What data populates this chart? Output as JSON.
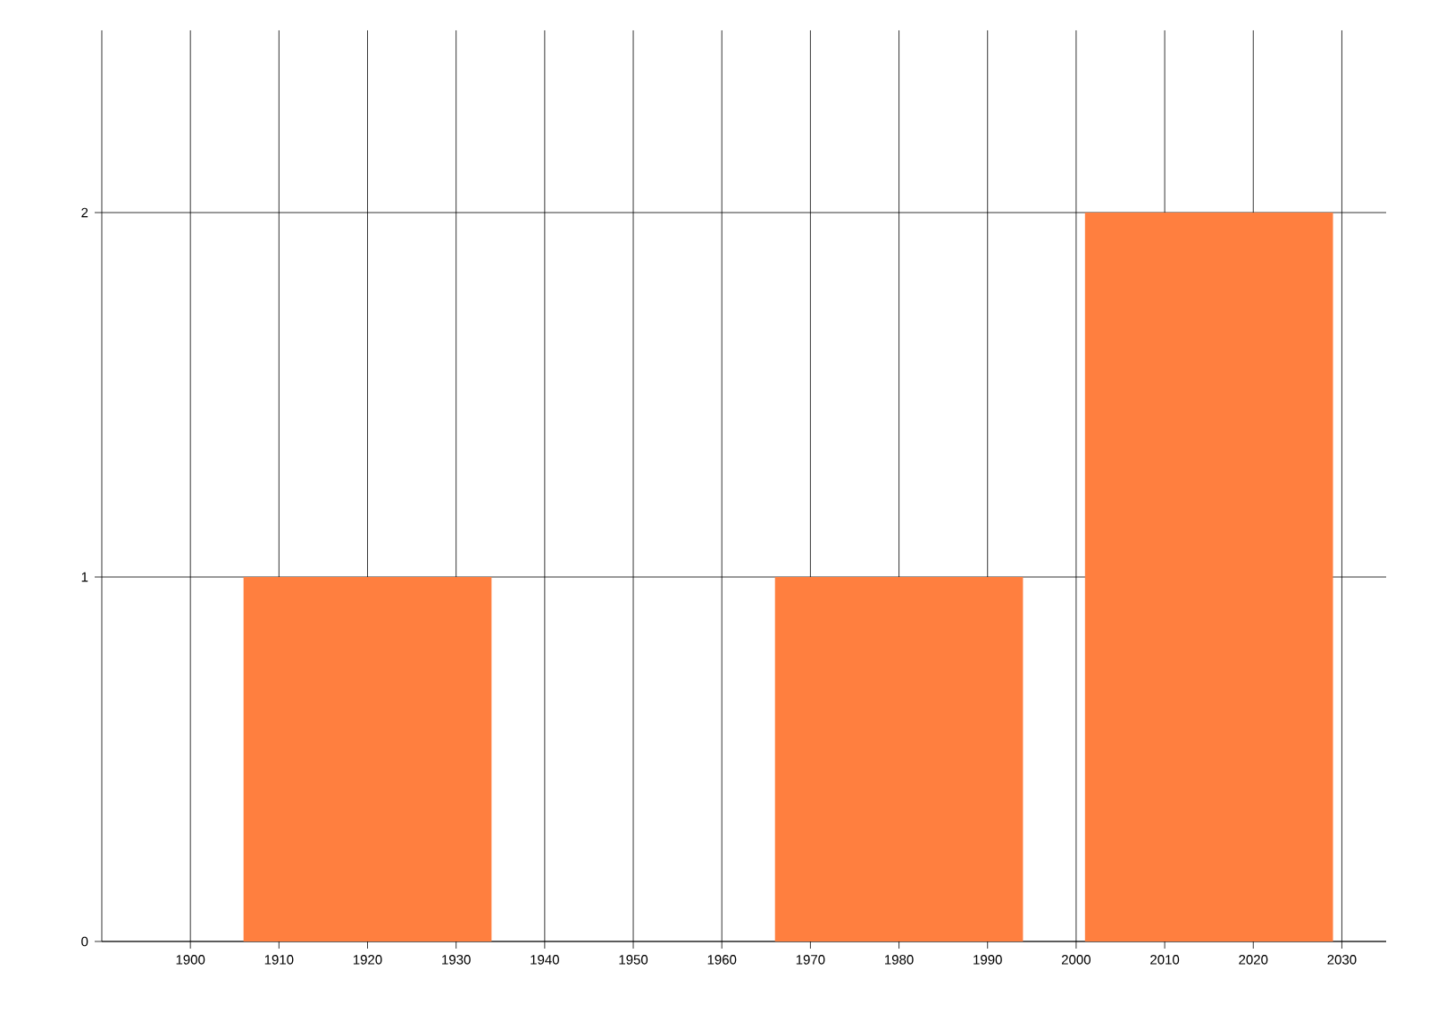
{
  "chart_data": {
    "type": "bar",
    "x": [
      1920,
      1980,
      2015
    ],
    "values": [
      1,
      1,
      2
    ],
    "color": "#ff7f3f",
    "xlim": [
      1890,
      2035
    ],
    "xticks": [
      1900,
      1910,
      1920,
      1930,
      1940,
      1950,
      1960,
      1970,
      1980,
      1990,
      2000,
      2010,
      2020,
      2030
    ],
    "ylim": [
      0,
      2.5
    ],
    "yticks": [
      0,
      1,
      2
    ],
    "grid": true
  }
}
